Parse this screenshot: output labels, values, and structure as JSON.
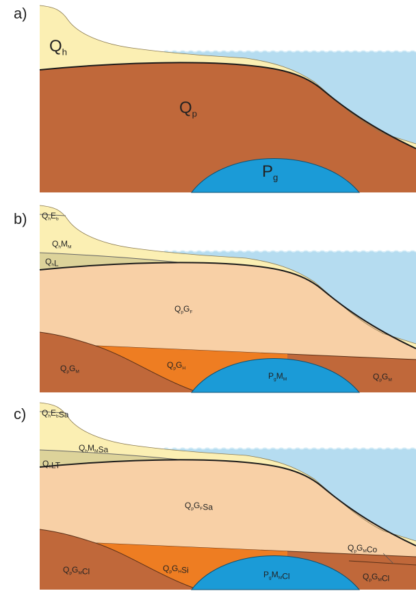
{
  "panels": [
    {
      "letter": "a)",
      "units": [
        {
          "parts": [
            {
              "text": "Q",
              "sub": "h"
            }
          ]
        },
        {
          "parts": [
            {
              "text": "Q",
              "sub": "p"
            }
          ]
        },
        {
          "parts": [
            {
              "text": "P",
              "sub": "g"
            }
          ]
        }
      ]
    },
    {
      "letter": "b)",
      "units": [
        {
          "parts": [
            {
              "text": "Q",
              "sub": "h"
            },
            {
              "text": "E",
              "sub": "b"
            }
          ]
        },
        {
          "parts": [
            {
              "text": "Q",
              "sub": "h"
            },
            {
              "text": "M",
              "sub": "M"
            }
          ]
        },
        {
          "parts": [
            {
              "text": "Q",
              "sub": "h"
            },
            {
              "text": "L"
            }
          ]
        },
        {
          "parts": [
            {
              "text": "Q",
              "sub": "p"
            },
            {
              "text": "G",
              "sub": "F"
            }
          ]
        },
        {
          "parts": [
            {
              "text": "Q",
              "sub": "p"
            },
            {
              "text": "G",
              "sub": "M"
            }
          ]
        },
        {
          "parts": [
            {
              "text": "Q",
              "sub": "p"
            },
            {
              "text": "G",
              "sub": "H"
            }
          ]
        },
        {
          "parts": [
            {
              "text": "P",
              "sub": "g"
            },
            {
              "text": "M",
              "sub": "M"
            }
          ]
        },
        {
          "parts": [
            {
              "text": "Q",
              "sub": "p"
            },
            {
              "text": "G",
              "sub": "M"
            }
          ]
        }
      ]
    },
    {
      "letter": "c)",
      "units": [
        {
          "parts": [
            {
              "text": "Q",
              "sub": "h"
            },
            {
              "text": "E",
              "sub": "b"
            },
            {
              "text": "Sa"
            }
          ]
        },
        {
          "parts": [
            {
              "text": "Q",
              "sub": "h"
            },
            {
              "text": "M",
              "sub": "M"
            },
            {
              "text": "Sa"
            }
          ]
        },
        {
          "parts": [
            {
              "text": "Q",
              "sub": "h"
            },
            {
              "text": "LT"
            }
          ]
        },
        {
          "parts": [
            {
              "text": "Q",
              "sub": "p"
            },
            {
              "text": "G",
              "sub": "F"
            },
            {
              "text": "Sa"
            }
          ]
        },
        {
          "parts": [
            {
              "text": "Q",
              "sub": "p"
            },
            {
              "text": "G",
              "sub": "M"
            },
            {
              "text": "Cl"
            }
          ]
        },
        {
          "parts": [
            {
              "text": "Q",
              "sub": "p"
            },
            {
              "text": "G",
              "sub": "H"
            },
            {
              "text": "Si"
            }
          ]
        },
        {
          "parts": [
            {
              "text": "P",
              "sub": "g"
            },
            {
              "text": "M",
              "sub": "M"
            },
            {
              "text": "Cl"
            }
          ]
        },
        {
          "parts": [
            {
              "text": "Q",
              "sub": "p"
            },
            {
              "text": "G",
              "sub": "M"
            },
            {
              "text": "Co"
            }
          ]
        },
        {
          "parts": [
            {
              "text": "Q",
              "sub": "p"
            },
            {
              "text": "G",
              "sub": "M"
            },
            {
              "text": "Cl"
            }
          ]
        }
      ]
    }
  ]
}
